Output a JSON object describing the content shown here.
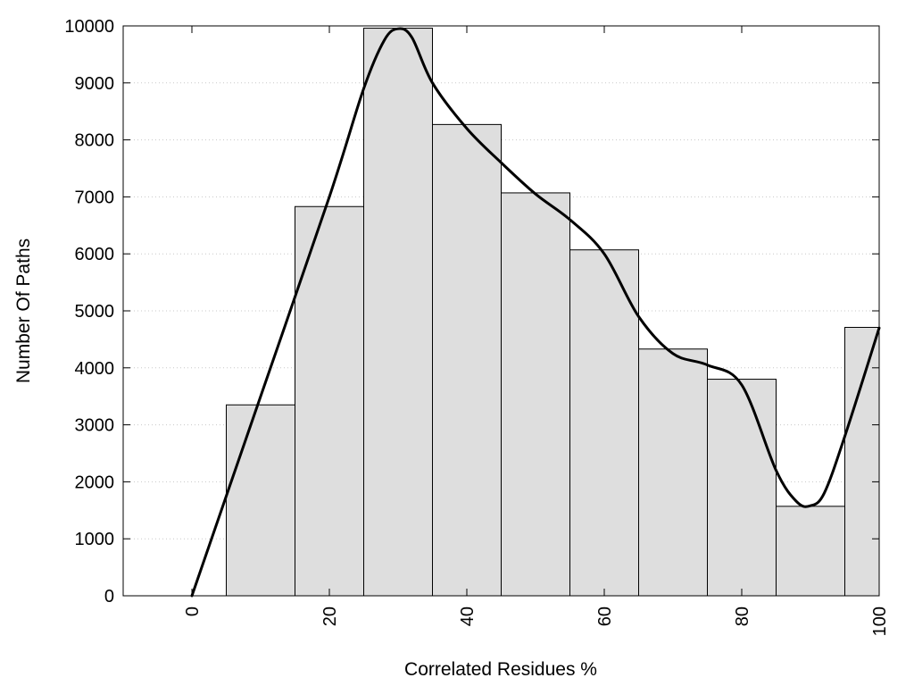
{
  "chart_data": {
    "type": "bar",
    "title": "",
    "xlabel": "Correlated Residues %",
    "ylabel": "Number Of Paths",
    "xlim": [
      -10,
      100
    ],
    "ylim": [
      0,
      10000
    ],
    "x_ticks": [
      0,
      20,
      40,
      60,
      80,
      100
    ],
    "y_ticks": [
      0,
      1000,
      2000,
      3000,
      4000,
      5000,
      6000,
      7000,
      8000,
      9000,
      10000
    ],
    "grid": "horizontal dotted",
    "bars": [
      {
        "x_start": 5,
        "x_end": 15,
        "value": 3350
      },
      {
        "x_start": 15,
        "x_end": 25,
        "value": 6830
      },
      {
        "x_start": 25,
        "x_end": 35,
        "value": 9960
      },
      {
        "x_start": 35,
        "x_end": 45,
        "value": 8270
      },
      {
        "x_start": 45,
        "x_end": 55,
        "value": 7070
      },
      {
        "x_start": 55,
        "x_end": 65,
        "value": 6070
      },
      {
        "x_start": 65,
        "x_end": 75,
        "value": 4330
      },
      {
        "x_start": 75,
        "x_end": 85,
        "value": 3800
      },
      {
        "x_start": 85,
        "x_end": 95,
        "value": 1570
      },
      {
        "x_start": 95,
        "x_end": 100,
        "value": 4710
      }
    ],
    "curve": {
      "x": [
        0,
        10,
        20,
        25,
        28,
        30,
        32,
        35,
        40,
        45,
        50,
        55,
        60,
        65,
        70,
        75,
        80,
        85,
        88,
        90,
        92,
        95,
        100
      ],
      "y": [
        0,
        3500,
        7000,
        8900,
        9750,
        9950,
        9800,
        9000,
        8200,
        7600,
        7050,
        6600,
        6000,
        4900,
        4250,
        4050,
        3700,
        2200,
        1650,
        1580,
        1800,
        2800,
        4700
      ]
    },
    "colors": {
      "bar_fill": "#dedede",
      "bar_stroke": "#000000",
      "curve": "#000000"
    }
  }
}
